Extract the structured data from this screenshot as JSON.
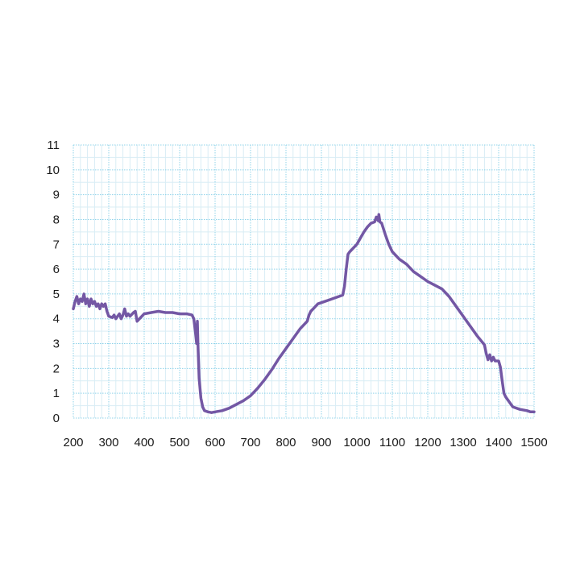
{
  "chart_data": {
    "type": "line",
    "title": "",
    "xlabel": "",
    "ylabel": "",
    "xlim": [
      200,
      1500
    ],
    "ylim": [
      0,
      11
    ],
    "x_ticks": [
      200,
      300,
      400,
      500,
      600,
      700,
      800,
      900,
      1000,
      1100,
      1200,
      1300,
      1400,
      1500
    ],
    "y_ticks": [
      0,
      1,
      2,
      3,
      4,
      5,
      6,
      7,
      8,
      9,
      10,
      11
    ],
    "x_tick_labels": [
      "200",
      "300",
      "400",
      "500",
      "600",
      "700",
      "800",
      "900",
      "1000",
      "1100",
      "1200",
      "1300",
      "1400",
      "1500"
    ],
    "y_tick_labels": [
      "0",
      "1",
      "2",
      "3",
      "4",
      "5",
      "6",
      "7",
      "8",
      "9",
      "10",
      "11"
    ],
    "grid": true,
    "grid_color": "#8fd3ea",
    "minor_grid_color": "#d9edf5",
    "line_color": "#7357a4",
    "series": [
      {
        "x": [
          200,
          205,
          210,
          215,
          220,
          225,
          230,
          235,
          240,
          245,
          250,
          255,
          260,
          265,
          270,
          275,
          280,
          285,
          290,
          295,
          300,
          310,
          315,
          320,
          325,
          330,
          335,
          340,
          345,
          350,
          355,
          360,
          370,
          375,
          380,
          390,
          400,
          420,
          440,
          460,
          480,
          500,
          520,
          535,
          540,
          545,
          548,
          550,
          552,
          555,
          560,
          565,
          570,
          580,
          590,
          600,
          620,
          640,
          660,
          680,
          700,
          720,
          740,
          760,
          780,
          800,
          820,
          840,
          860,
          865,
          870,
          880,
          890,
          900,
          920,
          940,
          960,
          965,
          970,
          975,
          980,
          1000,
          1020,
          1030,
          1040,
          1050,
          1055,
          1060,
          1062,
          1065,
          1070,
          1080,
          1090,
          1100,
          1120,
          1140,
          1160,
          1180,
          1200,
          1220,
          1240,
          1260,
          1280,
          1300,
          1320,
          1340,
          1360,
          1365,
          1370,
          1375,
          1380,
          1385,
          1390,
          1400,
          1405,
          1410,
          1415,
          1420,
          1430,
          1440,
          1460,
          1480,
          1490,
          1500
        ],
        "y": [
          4.4,
          4.7,
          4.9,
          4.6,
          4.8,
          4.7,
          5.0,
          4.6,
          4.8,
          4.5,
          4.8,
          4.6,
          4.7,
          4.5,
          4.6,
          4.4,
          4.6,
          4.5,
          4.6,
          4.3,
          4.1,
          4.05,
          4.15,
          4.0,
          4.1,
          4.2,
          4.0,
          4.15,
          4.4,
          4.1,
          4.2,
          4.1,
          4.25,
          4.3,
          3.9,
          4.05,
          4.2,
          4.25,
          4.3,
          4.25,
          4.25,
          4.2,
          4.2,
          4.15,
          4.0,
          3.4,
          3.0,
          3.9,
          2.8,
          1.6,
          0.8,
          0.45,
          0.3,
          0.25,
          0.22,
          0.25,
          0.3,
          0.4,
          0.55,
          0.7,
          0.9,
          1.2,
          1.55,
          1.95,
          2.4,
          2.8,
          3.2,
          3.6,
          3.9,
          4.15,
          4.3,
          4.45,
          4.6,
          4.65,
          4.75,
          4.85,
          4.95,
          5.3,
          6.0,
          6.6,
          6.7,
          7.0,
          7.5,
          7.7,
          7.85,
          7.9,
          8.1,
          7.95,
          8.2,
          7.9,
          7.85,
          7.4,
          7.0,
          6.7,
          6.4,
          6.2,
          5.9,
          5.7,
          5.5,
          5.35,
          5.2,
          4.9,
          4.5,
          4.1,
          3.7,
          3.3,
          2.95,
          2.6,
          2.35,
          2.55,
          2.3,
          2.45,
          2.3,
          2.3,
          2.05,
          1.5,
          1.0,
          0.85,
          0.65,
          0.45,
          0.35,
          0.3,
          0.25,
          0.25
        ]
      }
    ]
  }
}
